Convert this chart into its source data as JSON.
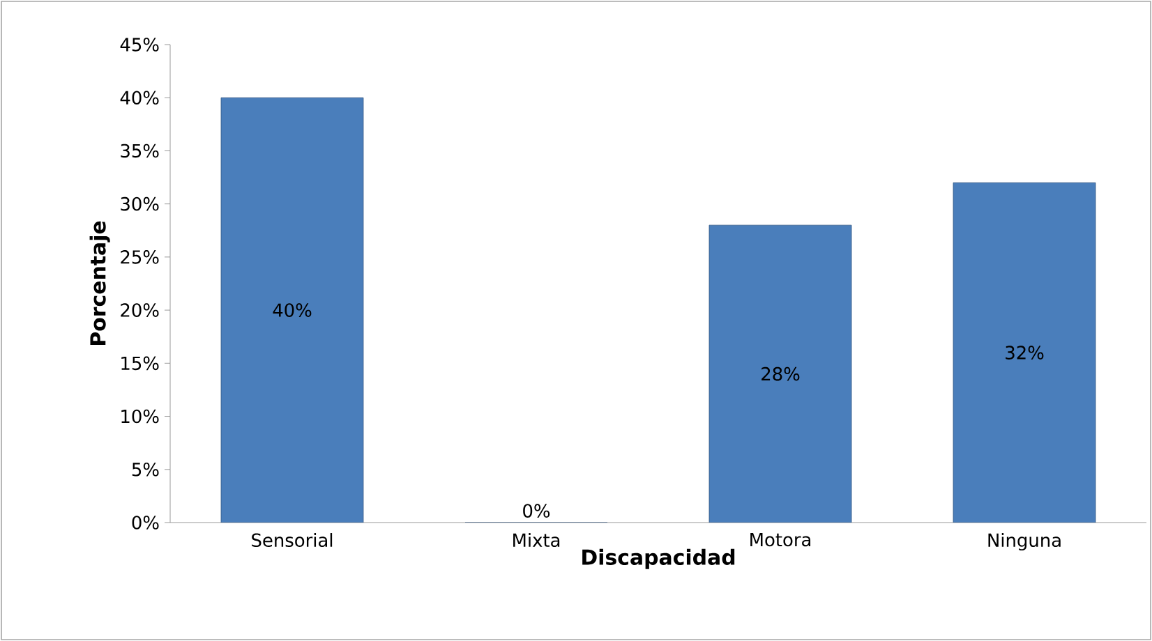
{
  "chart_data": {
    "type": "bar",
    "xlabel": "Discapacidad",
    "ylabel": "Porcentaje",
    "categories": [
      "Sensorial",
      "Mixta",
      "Motora",
      "Ninguna"
    ],
    "values": [
      40,
      0,
      28,
      32
    ],
    "value_labels": [
      "40%",
      "0%",
      "28%",
      "32%"
    ],
    "color": "#4a7ebb",
    "ylim": [
      0,
      45
    ],
    "yticks": [
      {
        "value": 0,
        "label": "0%"
      },
      {
        "value": 5,
        "label": "5%"
      },
      {
        "value": 10,
        "label": "10%"
      },
      {
        "value": 15,
        "label": "15%"
      },
      {
        "value": 20,
        "label": "20%"
      },
      {
        "value": 25,
        "label": "25%"
      },
      {
        "value": 30,
        "label": "30%"
      },
      {
        "value": 35,
        "label": "35%"
      },
      {
        "value": 40,
        "label": "40%"
      },
      {
        "value": 45,
        "label": "45%"
      }
    ],
    "grid": false
  }
}
